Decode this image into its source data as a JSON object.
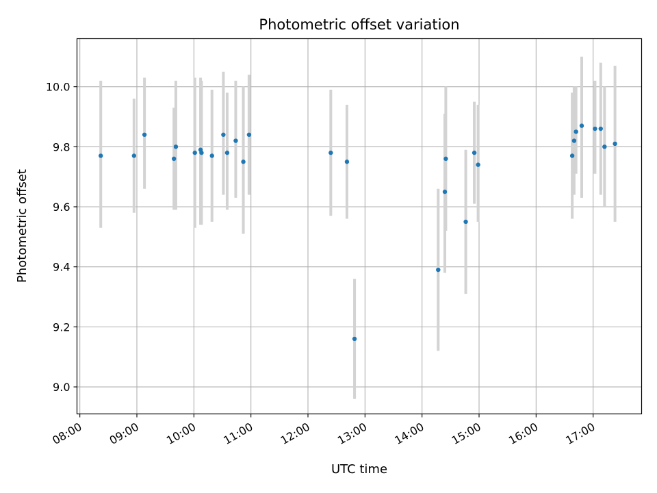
{
  "chart_data": {
    "type": "scatter",
    "title": "Photometric offset variation",
    "xlabel": "UTC time",
    "ylabel": "Photometric offset",
    "x_tick_labels": [
      "08:00",
      "09:00",
      "10:00",
      "11:00",
      "12:00",
      "13:00",
      "14:00",
      "15:00",
      "16:00",
      "17:00"
    ],
    "y_tick_labels": [
      "9.0",
      "9.2",
      "9.4",
      "9.6",
      "9.8",
      "10.0"
    ],
    "xlim": [
      "07:57",
      "17:51"
    ],
    "ylim": [
      8.91,
      10.16
    ],
    "grid": true,
    "colors": {
      "point": "#1f77b4",
      "errorbar": "#d3d3d3",
      "grid": "#b0b0b0"
    },
    "points": [
      {
        "x": "08:22",
        "y": 9.77,
        "ylow": 9.53,
        "yhigh": 10.02
      },
      {
        "x": "08:57",
        "y": 9.77,
        "ylow": 9.58,
        "yhigh": 9.96
      },
      {
        "x": "09:08",
        "y": 9.84,
        "ylow": 9.66,
        "yhigh": 10.03
      },
      {
        "x": "09:39",
        "y": 9.76,
        "ylow": 9.59,
        "yhigh": 9.93
      },
      {
        "x": "09:41",
        "y": 9.8,
        "ylow": 9.59,
        "yhigh": 10.02
      },
      {
        "x": "10:01",
        "y": 9.78,
        "ylow": 9.53,
        "yhigh": 10.03
      },
      {
        "x": "10:07",
        "y": 9.79,
        "ylow": 9.54,
        "yhigh": 10.03
      },
      {
        "x": "10:08",
        "y": 9.78,
        "ylow": 9.54,
        "yhigh": 10.02
      },
      {
        "x": "10:19",
        "y": 9.77,
        "ylow": 9.55,
        "yhigh": 9.99
      },
      {
        "x": "10:31",
        "y": 9.84,
        "ylow": 9.64,
        "yhigh": 10.05
      },
      {
        "x": "10:35",
        "y": 9.78,
        "ylow": 9.59,
        "yhigh": 9.98
      },
      {
        "x": "10:44",
        "y": 9.82,
        "ylow": 9.63,
        "yhigh": 10.02
      },
      {
        "x": "10:52",
        "y": 9.75,
        "ylow": 9.51,
        "yhigh": 10.0
      },
      {
        "x": "10:58",
        "y": 9.84,
        "ylow": 9.64,
        "yhigh": 10.04
      },
      {
        "x": "12:24",
        "y": 9.78,
        "ylow": 9.57,
        "yhigh": 9.99
      },
      {
        "x": "12:41",
        "y": 9.75,
        "ylow": 9.56,
        "yhigh": 9.94
      },
      {
        "x": "12:49",
        "y": 9.16,
        "ylow": 8.96,
        "yhigh": 9.36
      },
      {
        "x": "14:17",
        "y": 9.39,
        "ylow": 9.12,
        "yhigh": 9.66
      },
      {
        "x": "14:24",
        "y": 9.65,
        "ylow": 9.38,
        "yhigh": 9.91
      },
      {
        "x": "14:25",
        "y": 9.76,
        "ylow": 9.52,
        "yhigh": 10.0
      },
      {
        "x": "14:46",
        "y": 9.55,
        "ylow": 9.31,
        "yhigh": 9.79
      },
      {
        "x": "14:55",
        "y": 9.78,
        "ylow": 9.61,
        "yhigh": 9.95
      },
      {
        "x": "14:59",
        "y": 9.74,
        "ylow": 9.55,
        "yhigh": 9.94
      },
      {
        "x": "16:38",
        "y": 9.77,
        "ylow": 9.56,
        "yhigh": 9.98
      },
      {
        "x": "16:40",
        "y": 9.82,
        "ylow": 9.64,
        "yhigh": 10.0
      },
      {
        "x": "16:42",
        "y": 9.85,
        "ylow": 9.71,
        "yhigh": 10.0
      },
      {
        "x": "16:48",
        "y": 9.87,
        "ylow": 9.63,
        "yhigh": 10.1
      },
      {
        "x": "17:02",
        "y": 9.86,
        "ylow": 9.71,
        "yhigh": 10.02
      },
      {
        "x": "17:08",
        "y": 9.86,
        "ylow": 9.64,
        "yhigh": 10.08
      },
      {
        "x": "17:12",
        "y": 9.8,
        "ylow": 9.6,
        "yhigh": 10.0
      },
      {
        "x": "17:23",
        "y": 9.81,
        "ylow": 9.55,
        "yhigh": 10.07
      }
    ]
  }
}
